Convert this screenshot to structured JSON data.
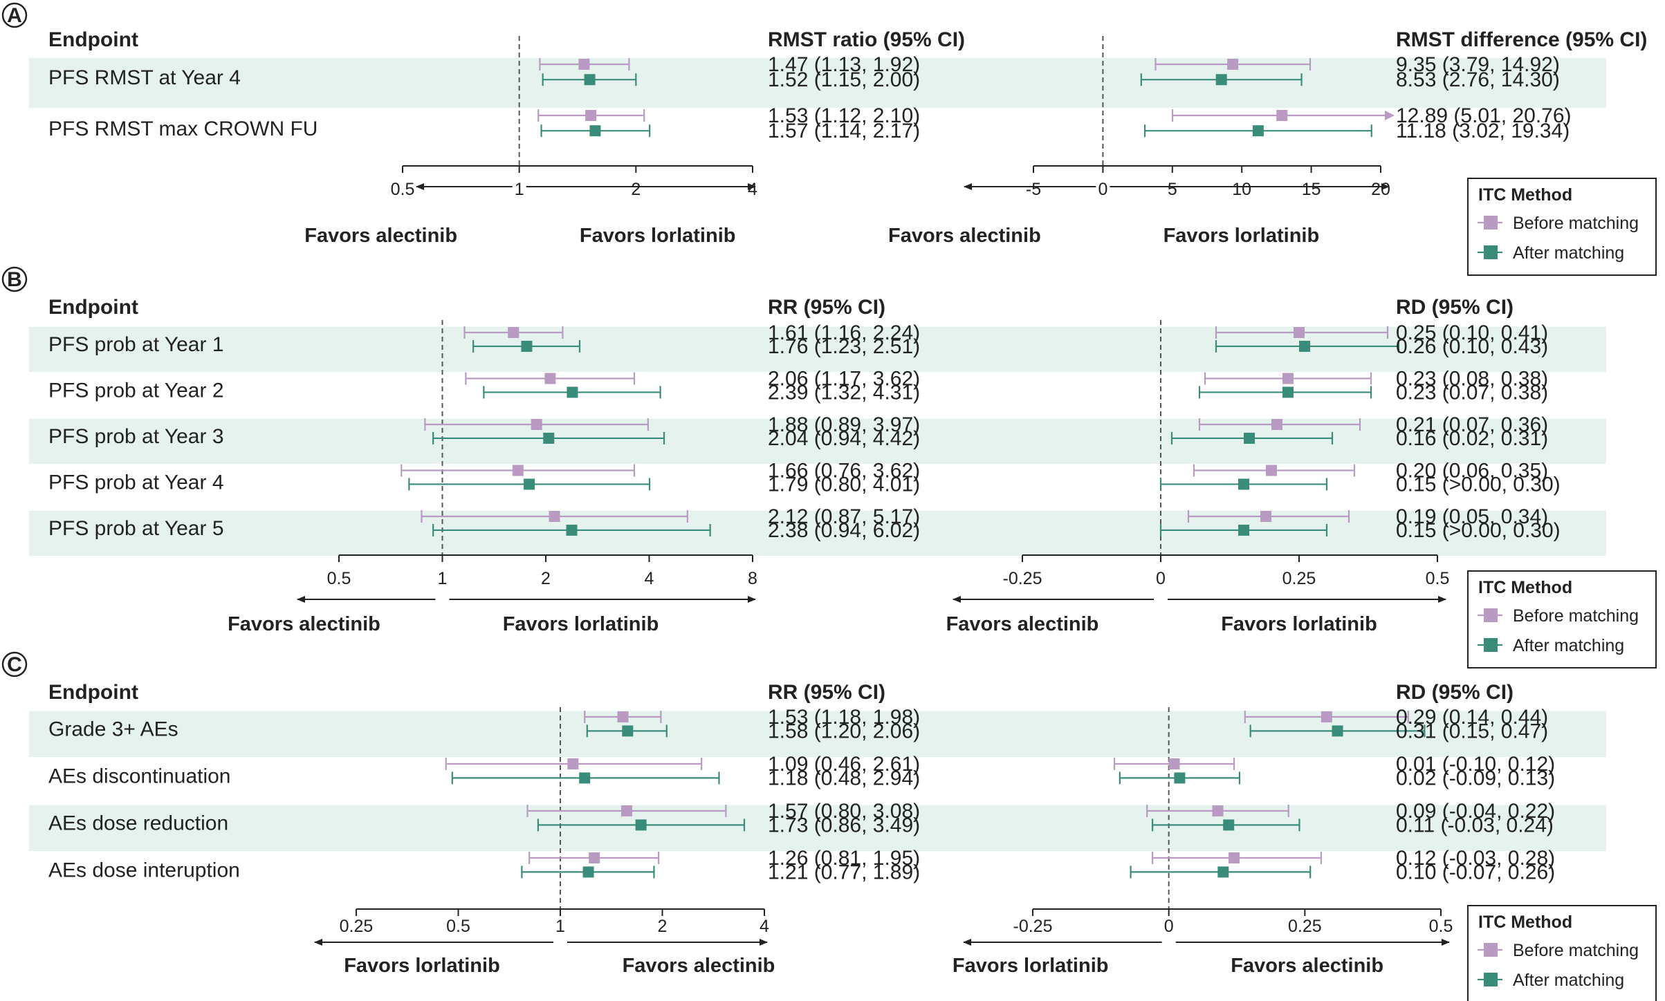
{
  "colors": {
    "before": "#b89ac2",
    "after": "#3a8c7a",
    "band": "#e5f2ee",
    "axis": "#222222"
  },
  "legend": {
    "title": "ITC Method",
    "before": "Before matching",
    "after": "After matching"
  },
  "chart_data": [
    {
      "type": "forest",
      "panel": "A",
      "endpoint_header": "Endpoint",
      "endpoints": [
        "PFS RMST at Year 4",
        "PFS RMST max CROWN FU"
      ],
      "banded": [
        true,
        false
      ],
      "ratio": {
        "header": "RMST ratio (95% CI)",
        "scale": "log",
        "ticks": [
          0.5,
          1,
          2,
          4
        ],
        "tick_labels": [
          "0.5",
          "1",
          "2",
          "4"
        ],
        "xlim": [
          0.5,
          4
        ],
        "reference": 1,
        "favors_left": "Favors alectinib",
        "favors_right": "Favors lorlatinib",
        "series": [
          {
            "name": "Before matching",
            "est": [
              1.47,
              1.53
            ],
            "lo": [
              1.13,
              1.12
            ],
            "hi": [
              1.92,
              2.1
            ],
            "labels": [
              "1.47 (1.13, 1.92)",
              "1.53 (1.12, 2.10)"
            ]
          },
          {
            "name": "After matching",
            "est": [
              1.52,
              1.57
            ],
            "lo": [
              1.15,
              1.14
            ],
            "hi": [
              2.0,
              2.17
            ],
            "labels": [
              "1.52 (1.15, 2.00)",
              "1.57 (1.14, 2.17)"
            ]
          }
        ]
      },
      "diff": {
        "header": "RMST difference (95% CI)",
        "scale": "linear",
        "ticks": [
          -5,
          0,
          5,
          10,
          15,
          20
        ],
        "tick_labels": [
          "-5",
          "0",
          "5",
          "10",
          "15",
          "20"
        ],
        "xlim": [
          -5,
          20
        ],
        "reference": 0,
        "favors_left": "Favors alectinib",
        "favors_right": "Favors lorlatinib",
        "series": [
          {
            "name": "Before matching",
            "est": [
              9.35,
              12.89
            ],
            "lo": [
              3.79,
              5.01
            ],
            "hi": [
              14.92,
              20.76
            ],
            "labels": [
              "9.35 (3.79, 14.92)",
              "12.89 (5.01, 20.76)"
            ]
          },
          {
            "name": "After matching",
            "est": [
              8.53,
              11.18
            ],
            "lo": [
              2.76,
              3.02
            ],
            "hi": [
              14.3,
              19.34
            ],
            "labels": [
              "8.53 (2.76, 14.30)",
              "11.18 (3.02, 19.34)"
            ]
          }
        ]
      }
    },
    {
      "type": "forest",
      "panel": "B",
      "endpoint_header": "Endpoint",
      "endpoints": [
        "PFS prob at Year 1",
        "PFS prob at Year 2",
        "PFS prob at Year 3",
        "PFS prob at Year 4",
        "PFS prob at Year 5"
      ],
      "banded": [
        true,
        false,
        true,
        false,
        true
      ],
      "ratio": {
        "header": "RR (95% CI)",
        "scale": "log",
        "ticks": [
          0.5,
          1,
          2,
          4,
          8
        ],
        "tick_labels": [
          "0.5",
          "1",
          "2",
          "4",
          "8"
        ],
        "xlim": [
          0.5,
          8
        ],
        "reference": 1,
        "favors_left": "Favors alectinib",
        "favors_right": "Favors lorlatinib",
        "series": [
          {
            "name": "Before matching",
            "est": [
              1.61,
              2.06,
              1.88,
              1.66,
              2.12
            ],
            "lo": [
              1.16,
              1.17,
              0.89,
              0.76,
              0.87
            ],
            "hi": [
              2.24,
              3.62,
              3.97,
              3.62,
              5.17
            ],
            "labels": [
              "1.61 (1.16, 2.24)",
              "2.06 (1.17, 3.62)",
              "1.88 (0.89, 3.97)",
              "1.66 (0.76, 3.62)",
              "2.12 (0.87, 5.17)"
            ]
          },
          {
            "name": "After matching",
            "est": [
              1.76,
              2.39,
              2.04,
              1.79,
              2.38
            ],
            "lo": [
              1.23,
              1.32,
              0.94,
              0.8,
              0.94
            ],
            "hi": [
              2.51,
              4.31,
              4.42,
              4.01,
              6.02
            ],
            "labels": [
              "1.76 (1.23, 2.51)",
              "2.39 (1.32, 4.31)",
              "2.04 (0.94, 4.42)",
              "1.79 (0.80, 4.01)",
              "2.38 (0.94, 6.02)"
            ]
          }
        ]
      },
      "diff": {
        "header": "RD (95% CI)",
        "scale": "linear",
        "ticks": [
          -0.25,
          0,
          0.25,
          0.5
        ],
        "tick_labels": [
          "-0.25",
          "0",
          "0.25",
          "0.5"
        ],
        "xlim": [
          -0.25,
          0.5
        ],
        "reference": 0,
        "favors_left": "Favors alectinib",
        "favors_right": "Favors lorlatinib",
        "series": [
          {
            "name": "Before matching",
            "est": [
              0.25,
              0.23,
              0.21,
              0.2,
              0.19
            ],
            "lo": [
              0.1,
              0.08,
              0.07,
              0.06,
              0.05
            ],
            "hi": [
              0.41,
              0.38,
              0.36,
              0.35,
              0.34
            ],
            "labels": [
              "0.25 (0.10, 0.41)",
              "0.23 (0.08, 0.38)",
              "0.21 (0.07, 0.36)",
              "0.20 (0.06, 0.35)",
              "0.19 (0.05, 0.34)"
            ]
          },
          {
            "name": "After matching",
            "est": [
              0.26,
              0.23,
              0.16,
              0.15,
              0.15
            ],
            "lo": [
              0.1,
              0.07,
              0.02,
              0.0,
              0.0
            ],
            "hi": [
              0.43,
              0.38,
              0.31,
              0.3,
              0.3
            ],
            "labels": [
              "0.26 (0.10, 0.43)",
              "0.23 (0.07, 0.38)",
              "0.16 (0.02, 0.31)",
              "0.15 (>0.00, 0.30)",
              "0.15 (>0.00, 0.30)"
            ]
          }
        ]
      }
    },
    {
      "type": "forest",
      "panel": "C",
      "endpoint_header": "Endpoint",
      "endpoints": [
        "Grade 3+ AEs",
        "AEs discontinuation",
        "AEs dose reduction",
        "AEs dose interuption"
      ],
      "banded": [
        true,
        false,
        true,
        false
      ],
      "ratio": {
        "header": "RR (95% CI)",
        "scale": "log",
        "ticks": [
          0.25,
          0.5,
          1,
          2,
          4
        ],
        "tick_labels": [
          "0.25",
          "0.5",
          "1",
          "2",
          "4"
        ],
        "xlim": [
          0.25,
          4
        ],
        "reference": 1,
        "favors_left": "Favors lorlatinib",
        "favors_right": "Favors alectinib",
        "series": [
          {
            "name": "Before matching",
            "est": [
              1.53,
              1.09,
              1.57,
              1.26
            ],
            "lo": [
              1.18,
              0.46,
              0.8,
              0.81
            ],
            "hi": [
              1.98,
              2.61,
              3.08,
              1.95
            ],
            "labels": [
              "1.53 (1.18, 1.98)",
              "1.09 (0.46, 2.61)",
              "1.57 (0.80, 3.08)",
              "1.26 (0.81, 1.95)"
            ]
          },
          {
            "name": "After matching",
            "est": [
              1.58,
              1.18,
              1.73,
              1.21
            ],
            "lo": [
              1.2,
              0.48,
              0.86,
              0.77
            ],
            "hi": [
              2.06,
              2.94,
              3.49,
              1.89
            ],
            "labels": [
              "1.58 (1.20, 2.06)",
              "1.18 (0.48, 2.94)",
              "1.73 (0.86, 3.49)",
              "1.21 (0.77, 1.89)"
            ]
          }
        ]
      },
      "diff": {
        "header": "RD (95% CI)",
        "scale": "linear",
        "ticks": [
          -0.25,
          0,
          0.25,
          0.5
        ],
        "tick_labels": [
          "-0.25",
          "0",
          "0.25",
          "0.5"
        ],
        "xlim": [
          -0.25,
          0.5
        ],
        "reference": 0,
        "favors_left": "Favors lorlatinib",
        "favors_right": "Favors alectinib",
        "series": [
          {
            "name": "Before matching",
            "est": [
              0.29,
              0.01,
              0.09,
              0.12
            ],
            "lo": [
              0.14,
              -0.1,
              -0.04,
              -0.03
            ],
            "hi": [
              0.44,
              0.12,
              0.22,
              0.28
            ],
            "labels": [
              "0.29 (0.14, 0.44)",
              "0.01 (-0.10, 0.12)",
              "0.09 (-0.04, 0.22)",
              "0.12 (-0.03, 0.28)"
            ]
          },
          {
            "name": "After matching",
            "est": [
              0.31,
              0.02,
              0.11,
              0.1
            ],
            "lo": [
              0.15,
              -0.09,
              -0.03,
              -0.07
            ],
            "hi": [
              0.47,
              0.13,
              0.24,
              0.26
            ],
            "labels": [
              "0.31 (0.15, 0.47)",
              "0.02 (-0.09, 0.13)",
              "0.11 (-0.03, 0.24)",
              "0.10 (-0.07, 0.26)"
            ]
          }
        ]
      }
    }
  ]
}
